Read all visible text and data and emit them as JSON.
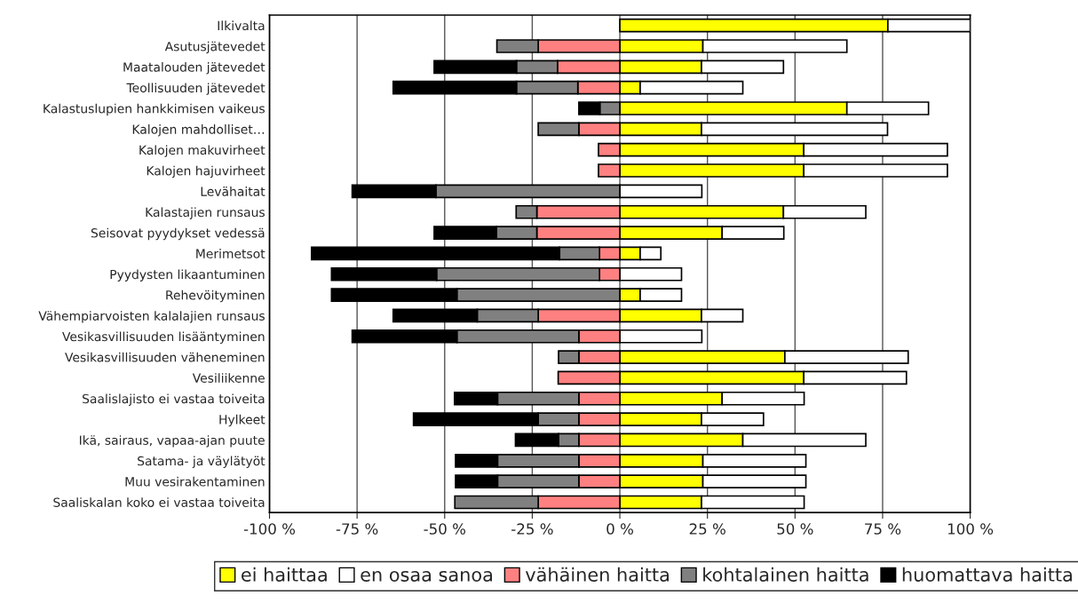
{
  "chart_data": {
    "type": "bar",
    "orientation": "horizontal",
    "stacked": true,
    "categories": [
      "Ilkivalta",
      "Asutusjätevedet",
      "Maatalouden jätevedet",
      "Teollisuuden jätevedet",
      "Kalastuslupien hankkimisen vaikeus",
      "Kalojen mahdolliset…",
      "Kalojen makuvirheet",
      "Kalojen hajuvirheet",
      "Levähaitat",
      "Kalastajien runsaus",
      "Seisovat pyydykset vedessä",
      "Merimetsot",
      "Pyydysten likaantuminen",
      "Rehevöityminen",
      "Vähempiarvoisten kalalajien runsaus",
      "Vesikasvillisuuden lisääntyminen",
      "Vesikasvillisuuden väheneminen",
      "Vesiliikenne",
      "Saalislajisto ei vastaa toiveita",
      "Hylkeet",
      "Ikä, sairaus, vapaa-ajan puute",
      "Satama- ja väylätyöt",
      "Muu vesirakentaminen",
      "Saaliskalan koko ei vastaa toiveita"
    ],
    "series": [
      {
        "name": "ei haittaa",
        "color": "#ffff00",
        "values": [
          76.5,
          23.7,
          23.3,
          5.8,
          64.8,
          23.3,
          52.5,
          52.5,
          0,
          46.7,
          29.2,
          5.8,
          0,
          5.8,
          23.3,
          0,
          47.1,
          52.5,
          29.2,
          23.3,
          35.1,
          23.7,
          23.7,
          23.3
        ]
      },
      {
        "name": "en osaa sanoa",
        "color": "#ffffff",
        "values": [
          23.5,
          41.1,
          23.4,
          29.3,
          23.3,
          53.1,
          41.0,
          41.0,
          23.4,
          23.5,
          17.6,
          5.9,
          17.6,
          11.8,
          11.8,
          23.4,
          35.2,
          29.3,
          23.4,
          17.7,
          35.1,
          29.4,
          29.4,
          29.3
        ]
      },
      {
        "name": "vähäinen haitta",
        "color": "#ff8080",
        "values": [
          0,
          -23.3,
          -17.8,
          -12.0,
          0,
          -11.7,
          -6.1,
          -6.1,
          0,
          -23.7,
          -23.7,
          -5.8,
          -5.8,
          0,
          -23.3,
          -11.7,
          -11.7,
          -17.6,
          -11.7,
          -11.7,
          -11.7,
          -11.7,
          -11.7,
          -23.3
        ]
      },
      {
        "name": "kohtalainen haitta",
        "color": "#808080",
        "values": [
          0,
          -11.8,
          -11.7,
          -17.5,
          -5.7,
          -11.6,
          0,
          0,
          -52.5,
          -5.9,
          -11.5,
          -11.4,
          -46.5,
          -46.5,
          -17.4,
          -34.8,
          -5.8,
          0,
          -23.2,
          -11.6,
          -5.8,
          -23.2,
          -23.2,
          -23.8
        ]
      },
      {
        "name": "huomattava haitta",
        "color": "#000000",
        "values": [
          0,
          0,
          -23.5,
          -35.2,
          -6.0,
          0,
          0,
          0,
          -23.9,
          0,
          -17.8,
          -70.8,
          -30.0,
          -35.8,
          -24.0,
          -29.9,
          0,
          0,
          -12.3,
          -35.6,
          -12.3,
          -12.0,
          -12.0,
          0
        ]
      }
    ],
    "xlim": [
      -100,
      100
    ],
    "xticks": [
      {
        "value": -100,
        "label": "-100 %"
      },
      {
        "value": -75,
        "label": "-75 %"
      },
      {
        "value": -50,
        "label": "-50 %"
      },
      {
        "value": -25,
        "label": "-25 %"
      },
      {
        "value": 0,
        "label": "0 %"
      },
      {
        "value": 25,
        "label": "25 %"
      },
      {
        "value": 50,
        "label": "50 %"
      },
      {
        "value": 75,
        "label": "75 %"
      },
      {
        "value": 100,
        "label": "100 %"
      }
    ],
    "grid": "x",
    "legend": "bottom"
  }
}
